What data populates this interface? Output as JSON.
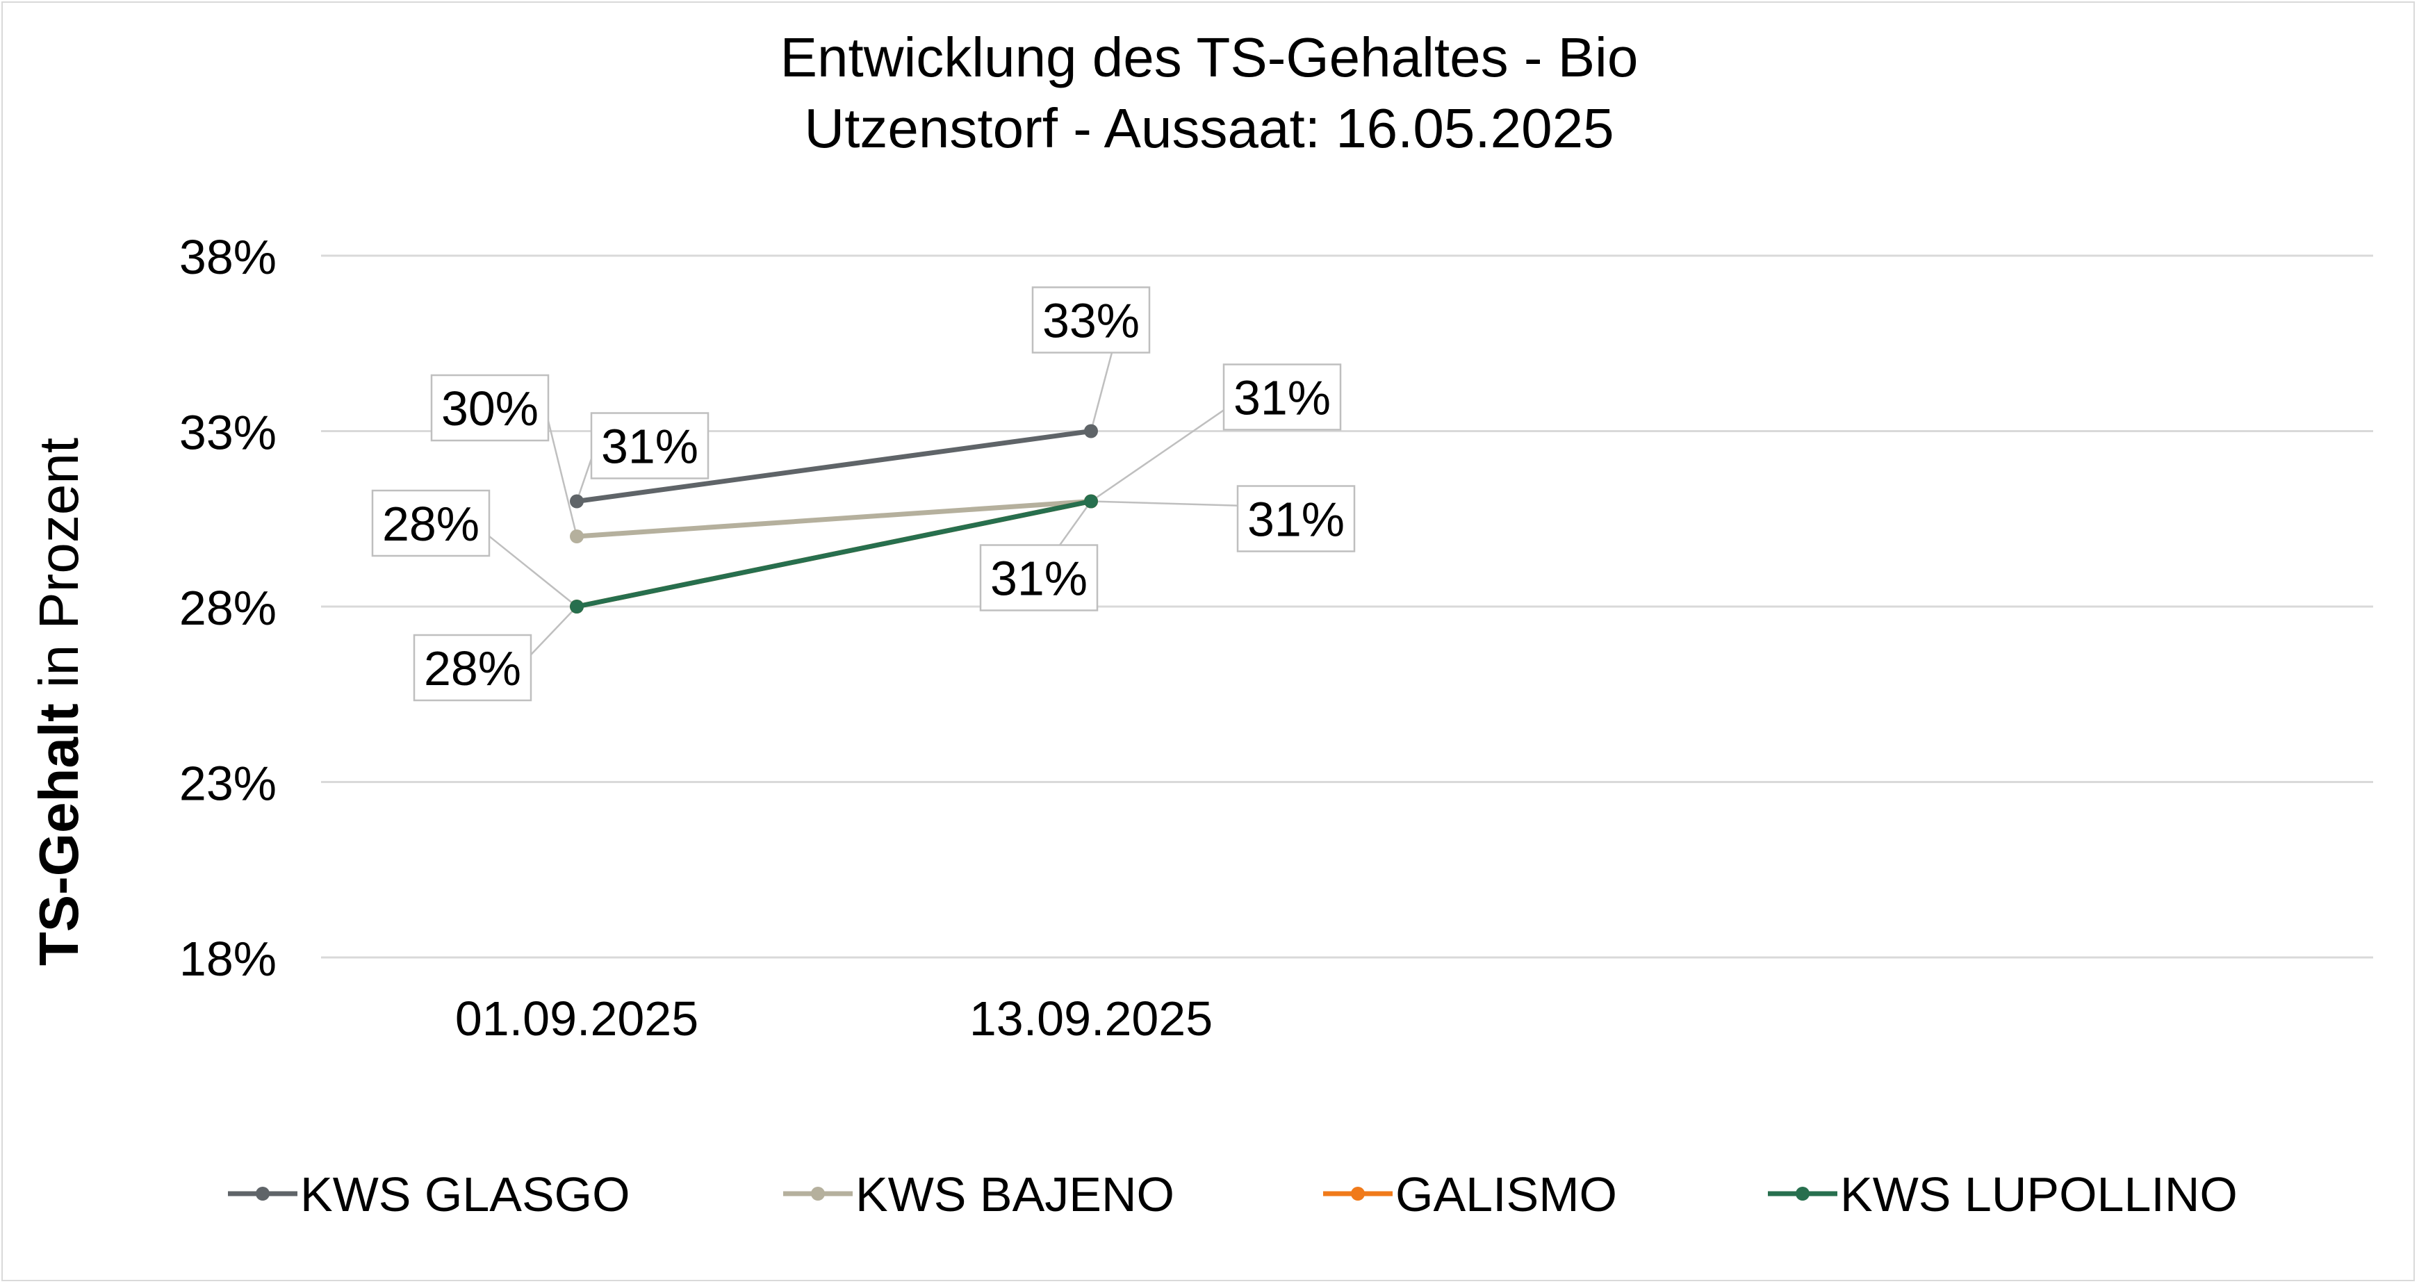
{
  "chart_data": {
    "type": "line",
    "title": "Entwicklung des TS-Gehaltes - Bio",
    "subtitle": "Utzenstorf - Aussaat: 16.05.2025",
    "ylabel_bold": "TS-Gehalt",
    "ylabel_rest": " in Prozent",
    "categories": [
      "01.09.2025",
      "13.09.2025"
    ],
    "ylim": [
      0.18,
      0.38
    ],
    "yticks": [
      0.18,
      0.23,
      0.28,
      0.33,
      0.38
    ],
    "ytick_labels": [
      "18%",
      "23%",
      "28%",
      "33%",
      "38%"
    ],
    "grid": true,
    "legend_position": "bottom",
    "series": [
      {
        "name": "KWS GLASGO",
        "color": "#5f6468",
        "values": [
          0.31,
          0.33
        ],
        "labels": [
          "31%",
          "33%"
        ]
      },
      {
        "name": "KWS BAJENO",
        "color": "#b5b09d",
        "values": [
          0.3,
          0.31
        ],
        "labels": [
          "30%",
          "31%"
        ]
      },
      {
        "name": "GALISMO",
        "color": "#f07a1a",
        "values": [
          0.28,
          0.31
        ],
        "labels": [
          "28%",
          "31%"
        ]
      },
      {
        "name": "KWS LUPOLLINO",
        "color": "#276f4e",
        "values": [
          0.28,
          0.31
        ],
        "labels": [
          "28%",
          "31%"
        ]
      }
    ]
  }
}
